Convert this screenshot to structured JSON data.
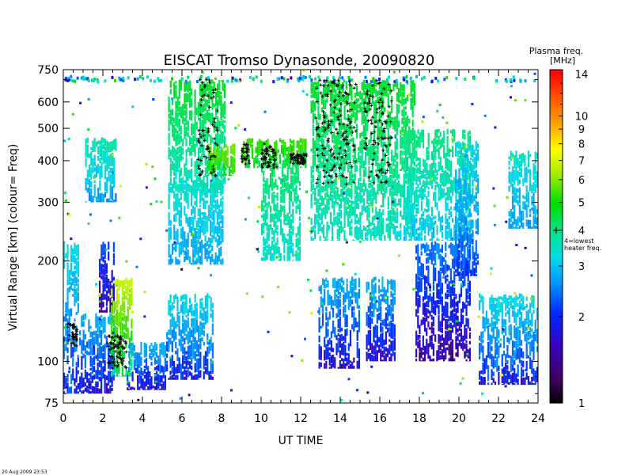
{
  "chart_data": {
    "type": "heatmap",
    "title": "EISCAT Tromso Dynasonde,   20090820",
    "xlabel": "UT TIME",
    "ylabel": "Virtual Range [km]    (colour= Freq)",
    "xlim": [
      0,
      24
    ],
    "ylim": [
      75,
      750
    ],
    "y_scale": "log",
    "x_ticks": [
      0,
      2,
      4,
      6,
      8,
      10,
      12,
      14,
      16,
      18,
      20,
      22,
      24
    ],
    "y_ticks": [
      75,
      100,
      200,
      300,
      400,
      500,
      600,
      750
    ],
    "colorbar": {
      "title": "Plasma freq.",
      "unit": "[MHz]",
      "range": [
        1,
        14.5
      ],
      "scale": "log",
      "ticks": [
        1,
        2,
        3,
        4,
        5,
        6,
        7,
        8,
        9,
        10,
        14
      ],
      "annotation": "4=lowest\nheater freq."
    },
    "marker_legend": "+",
    "regions": [
      {
        "t": [
          0.0,
          0.8
        ],
        "h": [
          80,
          230
        ],
        "f": [
          1.8,
          3.4
        ]
      },
      {
        "t": [
          0.8,
          2.6
        ],
        "h": [
          80,
          140
        ],
        "f": [
          1.5,
          3.0
        ]
      },
      {
        "t": [
          1.1,
          2.7
        ],
        "h": [
          300,
          470
        ],
        "f": [
          2.5,
          3.8
        ]
      },
      {
        "t": [
          1.8,
          2.6
        ],
        "h": [
          140,
          230
        ],
        "f": [
          1.2,
          2.4
        ]
      },
      {
        "t": [
          2.4,
          3.5
        ],
        "h": [
          90,
          180
        ],
        "f": [
          3.0,
          7.0
        ]
      },
      {
        "t": [
          3.2,
          5.2
        ],
        "h": [
          82,
          115
        ],
        "f": [
          1.4,
          3.0
        ]
      },
      {
        "t": [
          5.2,
          7.6
        ],
        "h": [
          88,
          160
        ],
        "f": [
          1.6,
          3.4
        ]
      },
      {
        "t": [
          5.3,
          8.1
        ],
        "h": [
          195,
          350
        ],
        "f": [
          2.6,
          3.6
        ]
      },
      {
        "t": [
          5.3,
          8.2
        ],
        "h": [
          320,
          700
        ],
        "f": [
          3.2,
          4.8
        ]
      },
      {
        "t": [
          7.3,
          8.7
        ],
        "h": [
          360,
          450
        ],
        "f": [
          4.5,
          6.0
        ]
      },
      {
        "t": [
          9.0,
          12.3
        ],
        "h": [
          380,
          470
        ],
        "f": [
          4.0,
          5.6
        ]
      },
      {
        "t": [
          10.0,
          12.0
        ],
        "h": [
          200,
          400
        ],
        "f": [
          3.2,
          4.4
        ]
      },
      {
        "t": [
          12.5,
          17.8
        ],
        "h": [
          230,
          700
        ],
        "f": [
          3.2,
          4.8
        ]
      },
      {
        "t": [
          12.9,
          15.0
        ],
        "h": [
          95,
          180
        ],
        "f": [
          1.4,
          3.0
        ]
      },
      {
        "t": [
          15.3,
          16.8
        ],
        "h": [
          100,
          180
        ],
        "f": [
          1.5,
          3.0
        ]
      },
      {
        "t": [
          17.2,
          20.6
        ],
        "h": [
          230,
          500
        ],
        "f": [
          2.8,
          4.2
        ]
      },
      {
        "t": [
          17.8,
          20.6
        ],
        "h": [
          100,
          230
        ],
        "f": [
          1.3,
          2.6
        ]
      },
      {
        "t": [
          19.8,
          21.0
        ],
        "h": [
          180,
          460
        ],
        "f": [
          2.0,
          3.4
        ]
      },
      {
        "t": [
          21.0,
          24.0
        ],
        "h": [
          85,
          160
        ],
        "f": [
          1.6,
          3.4
        ]
      },
      {
        "t": [
          22.5,
          24.0
        ],
        "h": [
          250,
          430
        ],
        "f": [
          2.6,
          3.6
        ]
      }
    ],
    "marker_clusters": [
      {
        "t": [
          6.8,
          7.8
        ],
        "h": [
          350,
          700
        ]
      },
      {
        "t": [
          9.0,
          9.4
        ],
        "h": [
          390,
          450
        ]
      },
      {
        "t": [
          10.0,
          10.8
        ],
        "h": [
          380,
          450
        ]
      },
      {
        "t": [
          11.5,
          12.3
        ],
        "h": [
          390,
          420
        ]
      },
      {
        "t": [
          12.7,
          14.8
        ],
        "h": [
          340,
          700
        ]
      },
      {
        "t": [
          15.2,
          16.6
        ],
        "h": [
          340,
          700
        ]
      },
      {
        "t": [
          2.2,
          3.2
        ],
        "h": [
          95,
          120
        ]
      },
      {
        "t": [
          0.2,
          0.7
        ],
        "h": [
          110,
          130
        ]
      }
    ]
  },
  "footer_stamp": "20 Aug 2009  23:53"
}
